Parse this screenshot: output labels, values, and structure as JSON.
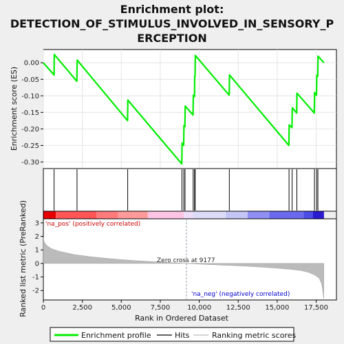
{
  "chart_data": {
    "type": "line",
    "title_lines": [
      "Enrichment plot:",
      "DETECTION_OF_STIMULUS_INVOLVED_IN_SENSORY_P",
      "ERCEPTION"
    ],
    "top_panel": {
      "ylabel": "Enrichment score (ES)",
      "ylim": [
        -0.32,
        0.04
      ],
      "yticks": [
        0.0,
        -0.05,
        -0.1,
        -0.15,
        -0.2,
        -0.25,
        -0.3
      ],
      "ytick_labels": [
        "0.00",
        "-0.05",
        "-0.10",
        "-0.15",
        "-0.20",
        "-0.25",
        "-0.30"
      ],
      "series_name": "Enrichment profile",
      "color": "#00ee00",
      "es_points": [
        [
          0,
          0.0
        ],
        [
          690,
          -0.037
        ],
        [
          700,
          0.025
        ],
        [
          2150,
          -0.056
        ],
        [
          2170,
          0.008
        ],
        [
          5400,
          -0.175
        ],
        [
          5420,
          -0.113
        ],
        [
          8880,
          -0.306
        ],
        [
          8900,
          -0.243
        ],
        [
          9000,
          -0.25
        ],
        [
          9020,
          -0.19
        ],
        [
          9080,
          -0.193
        ],
        [
          9100,
          -0.131
        ],
        [
          9600,
          -0.158
        ],
        [
          9620,
          -0.098
        ],
        [
          9700,
          -0.102
        ],
        [
          9710,
          -0.04
        ],
        [
          9730,
          -0.042
        ],
        [
          9750,
          0.022
        ],
        [
          11920,
          -0.098
        ],
        [
          11940,
          -0.037
        ],
        [
          15750,
          -0.25
        ],
        [
          15770,
          -0.188
        ],
        [
          15950,
          -0.196
        ],
        [
          15970,
          -0.136
        ],
        [
          16250,
          -0.152
        ],
        [
          16270,
          -0.092
        ],
        [
          17380,
          -0.152
        ],
        [
          17400,
          -0.09
        ],
        [
          17520,
          -0.098
        ],
        [
          17540,
          -0.038
        ],
        [
          17600,
          -0.041
        ],
        [
          17620,
          0.02
        ],
        [
          18000,
          0.0
        ]
      ]
    },
    "hits": {
      "name": "Hits",
      "positions": [
        690,
        2160,
        5410,
        8890,
        9010,
        9090,
        9610,
        9700,
        9740,
        11930,
        15760,
        15960,
        16260,
        17390,
        17530,
        17610
      ]
    },
    "rank_panel": {
      "ylabel": "Ranked list metric (PreRanked)",
      "ylim": [
        -2.7,
        3.3
      ],
      "yticks": [
        3,
        2,
        1,
        0,
        -1,
        -2
      ],
      "series_name": "Ranking metric scores",
      "zero_cross_label": "Zero cross at 9177",
      "zero_cross": 9177,
      "pos_label": "'na_pos' (positively correlated)",
      "neg_label": "'na_neg' (negatively correlated)",
      "metric_curve": [
        [
          0,
          1.9
        ],
        [
          50,
          1.6
        ],
        [
          200,
          1.35
        ],
        [
          500,
          1.1
        ],
        [
          1000,
          0.9
        ],
        [
          2000,
          0.65
        ],
        [
          3000,
          0.5
        ],
        [
          4000,
          0.38
        ],
        [
          5000,
          0.28
        ],
        [
          6000,
          0.2
        ],
        [
          7000,
          0.13
        ],
        [
          8000,
          0.07
        ],
        [
          9177,
          0.0
        ],
        [
          10000,
          -0.05
        ],
        [
          11000,
          -0.1
        ],
        [
          12000,
          -0.15
        ],
        [
          13000,
          -0.2
        ],
        [
          14000,
          -0.27
        ],
        [
          15000,
          -0.35
        ],
        [
          16000,
          -0.45
        ],
        [
          16500,
          -0.52
        ],
        [
          17000,
          -0.65
        ],
        [
          17400,
          -0.85
        ],
        [
          17700,
          -1.1
        ],
        [
          17850,
          -1.5
        ],
        [
          17950,
          -2.2
        ],
        [
          17990,
          -2.6
        ]
      ]
    },
    "color_bar": {
      "segments": [
        {
          "from": 0,
          "to": 800,
          "color": "#e60000"
        },
        {
          "from": 800,
          "to": 3400,
          "color": "#ff5555"
        },
        {
          "from": 3400,
          "to": 4800,
          "color": "#ff7a7a"
        },
        {
          "from": 4800,
          "to": 6700,
          "color": "#ff9a9a"
        },
        {
          "from": 6700,
          "to": 9000,
          "color": "#ffc4e4"
        },
        {
          "from": 9000,
          "to": 9600,
          "color": "#eeddf6"
        },
        {
          "from": 9600,
          "to": 11700,
          "color": "#dcdcf8"
        },
        {
          "from": 11700,
          "to": 13100,
          "color": "#c4c4f6"
        },
        {
          "from": 13100,
          "to": 14500,
          "color": "#8f8ff4"
        },
        {
          "from": 14500,
          "to": 16700,
          "color": "#6a6aee"
        },
        {
          "from": 16700,
          "to": 17300,
          "color": "#4b4be6"
        },
        {
          "from": 17300,
          "to": 18000,
          "color": "#2a1ad0"
        }
      ]
    },
    "x_axis": {
      "xlabel": "Rank in Ordered Dataset",
      "xlim": [
        0,
        18800
      ],
      "xticks": [
        0,
        2500,
        5000,
        7500,
        10000,
        12500,
        15000,
        17500
      ],
      "xtick_labels": [
        "0",
        "2,500",
        "5,000",
        "7,500",
        "10,000",
        "12,500",
        "15,000",
        "17,500"
      ]
    },
    "legend": {
      "items": [
        {
          "label": "Enrichment profile",
          "color": "#00ee00"
        },
        {
          "label": "Hits",
          "color": "#000000"
        },
        {
          "label": "Ranking metric scores",
          "color": "#bbbbbb"
        }
      ]
    }
  }
}
